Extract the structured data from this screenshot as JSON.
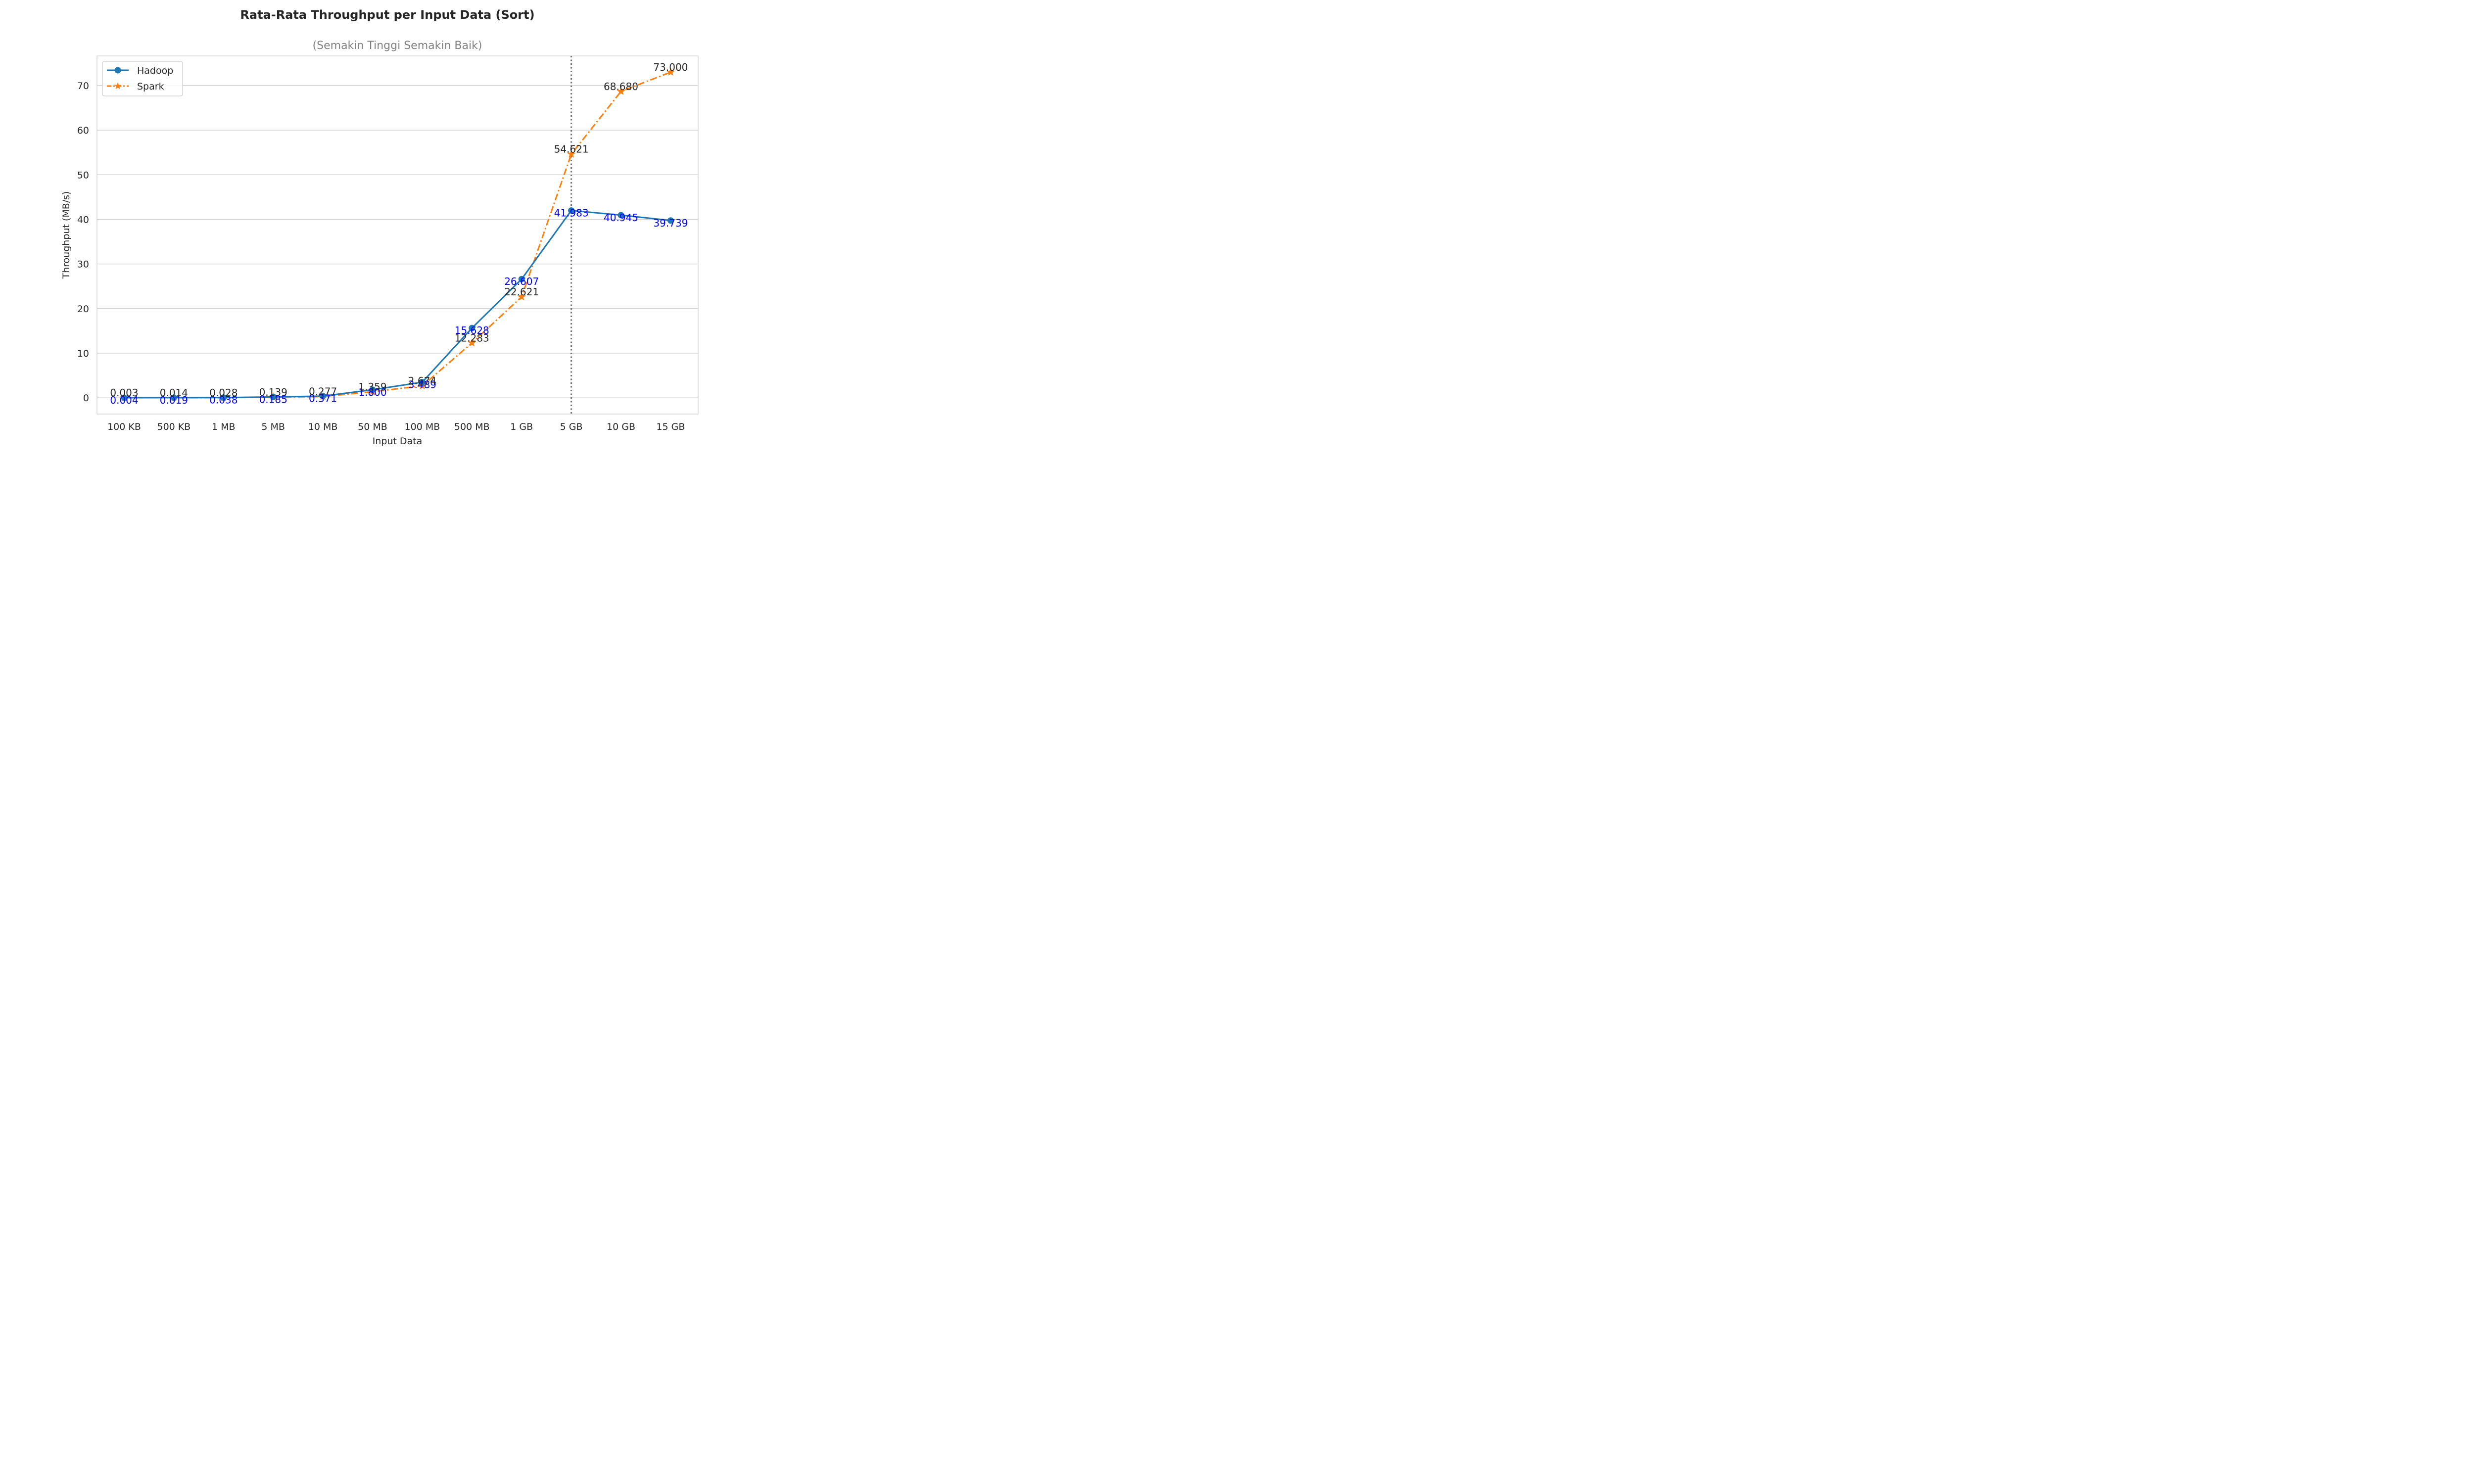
{
  "chart_data": {
    "type": "line",
    "title": "Rata-Rata Throughput per Input Data (Sort)",
    "subtitle": "(Semakin Tinggi Semakin Baik)",
    "xlabel": "Input Data",
    "ylabel": "Throughput (MB/s)",
    "categories": [
      "100 KB",
      "500 KB",
      "1 MB",
      "5 MB",
      "10 MB",
      "50 MB",
      "100 MB",
      "500 MB",
      "1 GB",
      "5 GB",
      "10 GB",
      "15 GB"
    ],
    "ylim": [
      -3.65,
      76.65
    ],
    "yticks": [
      0,
      10,
      20,
      30,
      40,
      50,
      60,
      70
    ],
    "grid": true,
    "legend_position": "top-left",
    "reference_line_category": "5 GB",
    "series": [
      {
        "name": "Hadoop",
        "color": "#1f77b4",
        "line_style": "solid",
        "marker": "circle",
        "label_color": "#0000ff",
        "values": [
          0.004,
          0.019,
          0.038,
          0.185,
          0.371,
          1.8,
          3.489,
          15.628,
          26.607,
          41.983,
          40.945,
          39.739
        ],
        "labels": [
          "0.004",
          "0.019",
          "0.038",
          "0.185",
          "0.371",
          "1.800",
          "3.489",
          "15.628",
          "26.607",
          "41.983",
          "40.945",
          "39.739"
        ]
      },
      {
        "name": "Spark",
        "color": "#ff7f0e",
        "line_style": "dashdot",
        "marker": "star",
        "label_color": "#262626",
        "values": [
          0.003,
          0.014,
          0.028,
          0.139,
          0.277,
          1.359,
          2.674,
          12.283,
          22.621,
          54.621,
          68.68,
          73.0
        ],
        "labels": [
          "0.003",
          "0.014",
          "0.028",
          "0.139",
          "0.277",
          "1.359",
          "2.674",
          "12.283",
          "22.621",
          "54.621",
          "68.680",
          "73.000"
        ]
      }
    ]
  }
}
